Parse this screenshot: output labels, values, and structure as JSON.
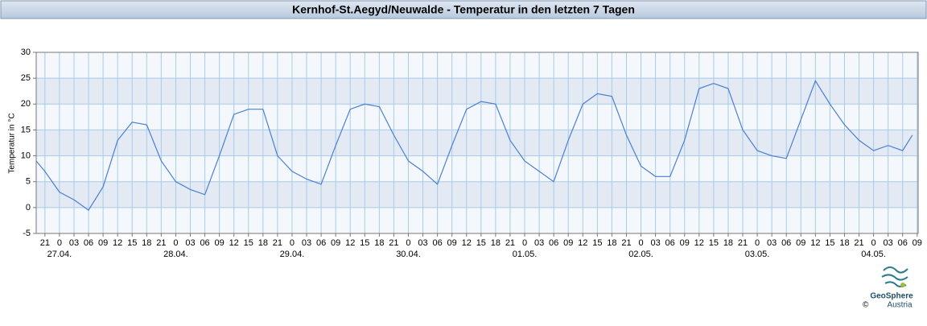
{
  "chart_data": {
    "type": "line",
    "title": "Kernhof-St.Aegyd/Neuwalde - Temperatur in den letzten 7 Tagen",
    "y_label": "Temperatur in °C",
    "x": [
      -1.8,
      0,
      3,
      6,
      9,
      12,
      15,
      18,
      21,
      24,
      27,
      30,
      33,
      36,
      39,
      42,
      45,
      48,
      51,
      54,
      57,
      60,
      63,
      66,
      69,
      72,
      75,
      78,
      81,
      84,
      87,
      90,
      93,
      96,
      99,
      102,
      105,
      108,
      111,
      114,
      117,
      120,
      123,
      126,
      129,
      132,
      135,
      138,
      141,
      144,
      147,
      150,
      153,
      156,
      159,
      162,
      165,
      168,
      171,
      174,
      177,
      179
    ],
    "series": [
      {
        "name": "Temperatur",
        "color": "#4a7fd4",
        "values": [
          9,
          7,
          3,
          1.5,
          -0.5,
          4,
          13,
          16.5,
          16,
          9,
          5,
          3.5,
          2.5,
          10,
          18,
          19,
          19,
          10,
          7,
          5.5,
          4.5,
          12,
          19,
          20,
          19.5,
          14,
          9,
          7,
          4.5,
          12,
          19,
          20.5,
          20,
          13,
          9,
          7,
          5,
          13,
          20,
          22,
          21.5,
          14,
          8,
          6,
          6,
          13,
          23,
          24,
          23,
          15,
          11,
          10,
          9.5,
          17,
          24.5,
          20,
          16,
          13,
          11,
          12,
          11,
          14
        ]
      }
    ],
    "xlim": [
      -1.8,
      180.2
    ],
    "xticks": [
      {
        "value": 0,
        "label": "21"
      },
      {
        "value": 3,
        "label": "0"
      },
      {
        "value": 6,
        "label": "03"
      },
      {
        "value": 9,
        "label": "06"
      },
      {
        "value": 12,
        "label": "09"
      },
      {
        "value": 15,
        "label": "12"
      },
      {
        "value": 18,
        "label": "15"
      },
      {
        "value": 21,
        "label": "18"
      },
      {
        "value": 24,
        "label": "21"
      },
      {
        "value": 27,
        "label": "0"
      },
      {
        "value": 30,
        "label": "03"
      },
      {
        "value": 33,
        "label": "06"
      },
      {
        "value": 36,
        "label": "09"
      },
      {
        "value": 39,
        "label": "12"
      },
      {
        "value": 42,
        "label": "15"
      },
      {
        "value": 45,
        "label": "18"
      },
      {
        "value": 48,
        "label": "21"
      },
      {
        "value": 51,
        "label": "0"
      },
      {
        "value": 54,
        "label": "03"
      },
      {
        "value": 57,
        "label": "06"
      },
      {
        "value": 60,
        "label": "09"
      },
      {
        "value": 63,
        "label": "12"
      },
      {
        "value": 66,
        "label": "15"
      },
      {
        "value": 69,
        "label": "18"
      },
      {
        "value": 72,
        "label": "21"
      },
      {
        "value": 75,
        "label": "0"
      },
      {
        "value": 78,
        "label": "03"
      },
      {
        "value": 81,
        "label": "06"
      },
      {
        "value": 84,
        "label": "09"
      },
      {
        "value": 87,
        "label": "12"
      },
      {
        "value": 90,
        "label": "15"
      },
      {
        "value": 93,
        "label": "18"
      },
      {
        "value": 96,
        "label": "21"
      },
      {
        "value": 99,
        "label": "0"
      },
      {
        "value": 102,
        "label": "03"
      },
      {
        "value": 105,
        "label": "06"
      },
      {
        "value": 108,
        "label": "09"
      },
      {
        "value": 111,
        "label": "12"
      },
      {
        "value": 114,
        "label": "15"
      },
      {
        "value": 117,
        "label": "18"
      },
      {
        "value": 120,
        "label": "21"
      },
      {
        "value": 123,
        "label": "0"
      },
      {
        "value": 126,
        "label": "03"
      },
      {
        "value": 129,
        "label": "06"
      },
      {
        "value": 132,
        "label": "09"
      },
      {
        "value": 135,
        "label": "12"
      },
      {
        "value": 138,
        "label": "15"
      },
      {
        "value": 141,
        "label": "18"
      },
      {
        "value": 144,
        "label": "21"
      },
      {
        "value": 147,
        "label": "0"
      },
      {
        "value": 150,
        "label": "03"
      },
      {
        "value": 153,
        "label": "06"
      },
      {
        "value": 156,
        "label": "09"
      },
      {
        "value": 159,
        "label": "12"
      },
      {
        "value": 162,
        "label": "15"
      },
      {
        "value": 165,
        "label": "18"
      },
      {
        "value": 168,
        "label": "21"
      },
      {
        "value": 171,
        "label": "0"
      },
      {
        "value": 174,
        "label": "03"
      },
      {
        "value": 177,
        "label": "06"
      },
      {
        "value": 180,
        "label": "09"
      }
    ],
    "date_labels": [
      {
        "value": 3,
        "label": "27.04."
      },
      {
        "value": 27,
        "label": "28.04."
      },
      {
        "value": 51,
        "label": "29.04."
      },
      {
        "value": 75,
        "label": "30.04."
      },
      {
        "value": 99,
        "label": "01.05."
      },
      {
        "value": 123,
        "label": "02.05."
      },
      {
        "value": 147,
        "label": "03.05."
      },
      {
        "value": 171,
        "label": "04.05."
      }
    ],
    "ylim": [
      -5,
      30
    ],
    "yticks": [
      -5,
      0,
      5,
      10,
      15,
      20,
      25,
      30
    ],
    "grid": true,
    "logo": {
      "name": "GeoSphere",
      "sub": "Austria",
      "copyright": "©"
    }
  }
}
